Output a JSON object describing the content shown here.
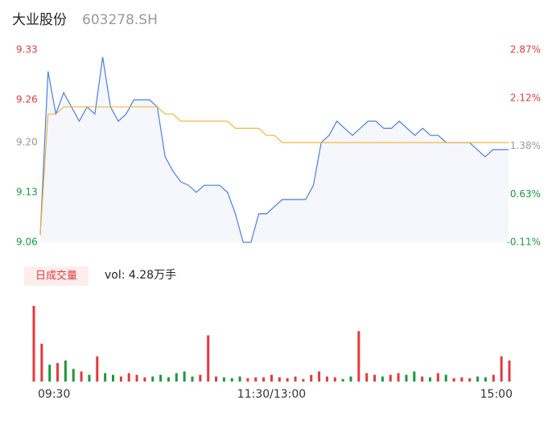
{
  "chart_data": [
    {
      "type": "line",
      "title": "大业股份",
      "subtitle": "603278.SH",
      "x": [
        0,
        4,
        8,
        12,
        16,
        20,
        24,
        28,
        32,
        36,
        40,
        44,
        48,
        52,
        56,
        60,
        64,
        68,
        72,
        76,
        80,
        84,
        88,
        92,
        96,
        100,
        104,
        108,
        112,
        116,
        120,
        124,
        128,
        132,
        136,
        140,
        144,
        148,
        152,
        156,
        160,
        164,
        168,
        172,
        176,
        180,
        184,
        188,
        192,
        196,
        200,
        204,
        208,
        212,
        216,
        220,
        224,
        228,
        232,
        236,
        240
      ],
      "xlim": [
        0,
        240
      ],
      "series": [
        {
          "name": "price",
          "color": "#4a7fe0",
          "values": [
            9.07,
            9.3,
            9.24,
            9.27,
            9.25,
            9.23,
            9.25,
            9.24,
            9.32,
            9.25,
            9.23,
            9.24,
            9.26,
            9.26,
            9.26,
            9.25,
            9.18,
            9.16,
            9.145,
            9.14,
            9.13,
            9.14,
            9.14,
            9.14,
            9.13,
            9.1,
            9.06,
            9.06,
            9.1,
            9.1,
            9.11,
            9.12,
            9.12,
            9.12,
            9.12,
            9.14,
            9.2,
            9.21,
            9.23,
            9.22,
            9.21,
            9.22,
            9.23,
            9.23,
            9.22,
            9.22,
            9.23,
            9.22,
            9.21,
            9.22,
            9.21,
            9.21,
            9.2,
            9.2,
            9.2,
            9.2,
            9.19,
            9.18,
            9.19,
            9.19,
            9.19
          ]
        },
        {
          "name": "average",
          "color": "#f2b53c",
          "values": [
            9.07,
            9.24,
            9.24,
            9.25,
            9.25,
            9.25,
            9.25,
            9.25,
            9.25,
            9.25,
            9.25,
            9.25,
            9.25,
            9.25,
            9.25,
            9.25,
            9.24,
            9.24,
            9.23,
            9.23,
            9.23,
            9.23,
            9.23,
            9.23,
            9.23,
            9.22,
            9.22,
            9.22,
            9.22,
            9.21,
            9.21,
            9.2,
            9.2,
            9.2,
            9.2,
            9.2,
            9.2,
            9.2,
            9.2,
            9.2,
            9.2,
            9.2,
            9.2,
            9.2,
            9.2,
            9.2,
            9.2,
            9.2,
            9.2,
            9.2,
            9.2,
            9.2,
            9.2,
            9.2,
            9.2,
            9.2,
            9.2,
            9.2,
            9.2,
            9.2,
            9.2
          ]
        }
      ],
      "ylim": [
        9.06,
        9.33
      ],
      "yticks": [
        9.33,
        9.26,
        {
          "value": 9.2,
          "label": "9.20"
        },
        9.13,
        9.06
      ],
      "ytick_colors": [
        "#e4393c",
        "#e4393c",
        "#999999",
        "#1a9a3a",
        "#1a9a3a"
      ],
      "y2lim": [
        -0.11,
        2.87
      ],
      "y2ticks": [
        {
          "value": 2.87,
          "label": "2.87%"
        },
        {
          "value": 2.12,
          "label": "2.12%"
        },
        {
          "value": 1.38,
          "label": "1.38%"
        },
        {
          "value": 0.63,
          "label": "0.63%"
        },
        {
          "value": -0.11,
          "label": "-0.11%"
        }
      ],
      "area_color": "#f5f7fd"
    },
    {
      "type": "bar",
      "title": "日成交量",
      "subtitle": "vol: 4.28万手",
      "values": [
        90,
        45,
        20,
        22,
        25,
        15,
        12,
        8,
        30,
        10,
        8,
        6,
        10,
        8,
        5,
        6,
        8,
        5,
        10,
        12,
        6,
        8,
        55,
        6,
        5,
        4,
        6,
        4,
        5,
        5,
        8,
        5,
        4,
        6,
        3,
        8,
        12,
        6,
        5,
        3,
        6,
        60,
        10,
        8,
        6,
        8,
        10,
        8,
        12,
        6,
        5,
        10,
        8,
        4,
        5,
        4,
        6,
        5,
        8,
        30,
        25
      ],
      "up_color": "#e4393c",
      "down_color": "#1a9a3a",
      "xticks": [
        {
          "value": 0,
          "label": "09:30"
        },
        {
          "value": 120,
          "label": "11:30/13:00"
        },
        {
          "value": 240,
          "label": "15:00"
        }
      ]
    }
  ]
}
